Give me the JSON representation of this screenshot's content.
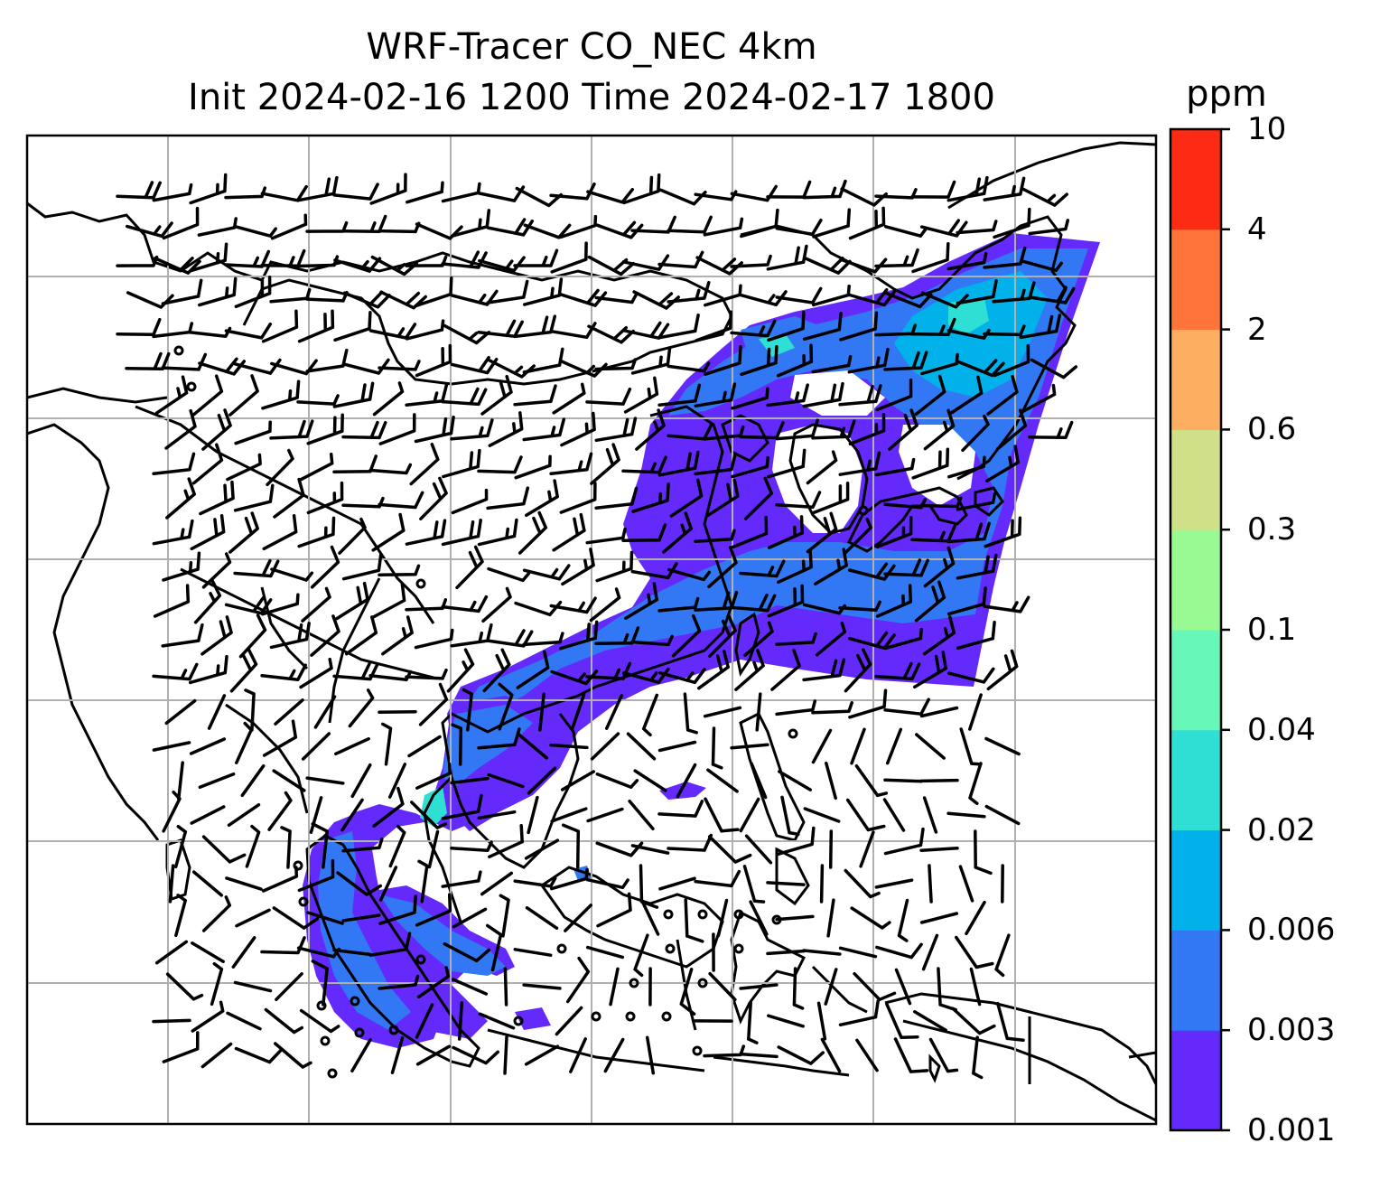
{
  "title": {
    "line1": "WRF-Tracer CO_NEC 4km",
    "line2": "Init 2024-02-16 1200 Time 2024-02-17 1800"
  },
  "colorbar": {
    "unit": "ppm",
    "levels": [
      "0.001",
      "0.003",
      "0.006",
      "0.02",
      "0.04",
      "0.1",
      "0.3",
      "0.6",
      "2",
      "4",
      "10"
    ],
    "colors": [
      "#6429fb",
      "#3278f4",
      "#00b1ea",
      "#2fdfd3",
      "#67f8b9",
      "#99f993",
      "#cfe088",
      "#fdae61",
      "#fe7439",
      "#fd2b14"
    ]
  },
  "map": {
    "gridlines": true,
    "fill_colors": {
      "plume_low": "#6429fb",
      "plume_mid": "#3278f4",
      "plume_high": "#00b1ea",
      "plume_peak": "#2fdfd3"
    },
    "coastline_color": "#000000",
    "grid_color": "#b0b0b0"
  }
}
